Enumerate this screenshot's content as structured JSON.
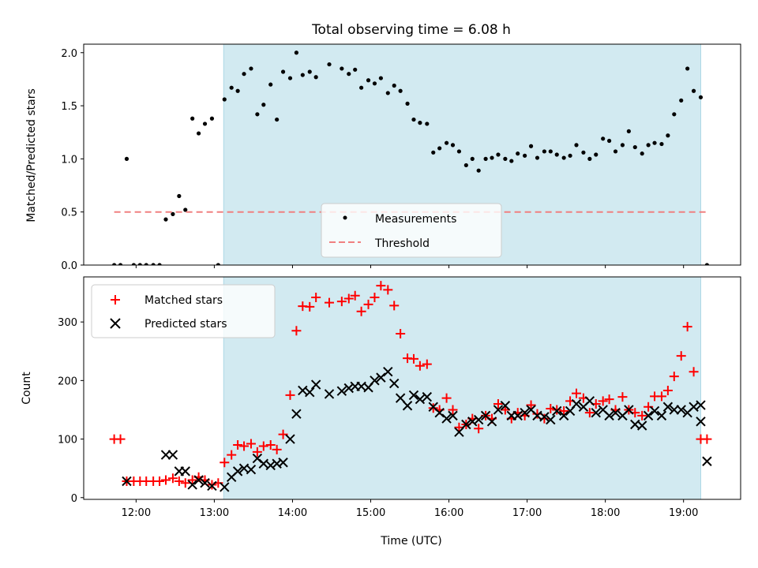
{
  "chart_data": [
    {
      "type": "scatter",
      "title": "Total observing time = 6.08 h",
      "xlabel": "",
      "ylabel": "Matched/Predicted stars",
      "ylim": [
        0,
        2.08
      ],
      "yticks": [
        0.0,
        0.5,
        1.0,
        1.5,
        2.0
      ],
      "ytick_labels": [
        "0.0",
        "0.5",
        "1.0",
        "1.5",
        "2.0"
      ],
      "xlim": [
        11.33,
        19.73
      ],
      "shaded_span": [
        13.12,
        19.22
      ],
      "shaded_color": "#add8e6",
      "legend_position": "lower-center",
      "series": [
        {
          "name": "Measurements",
          "kind": "dots",
          "color": "#000000",
          "x": [
            11.72,
            11.8,
            11.88,
            11.97,
            12.05,
            12.13,
            12.22,
            12.3,
            12.38,
            12.47,
            12.55,
            12.63,
            12.72,
            12.8,
            12.88,
            12.97,
            13.05,
            13.13,
            13.22,
            13.3,
            13.38,
            13.47,
            13.55,
            13.63,
            13.72,
            13.8,
            13.88,
            13.97,
            14.05,
            14.13,
            14.22,
            14.3,
            14.47,
            14.63,
            14.72,
            14.8,
            14.88,
            14.97,
            15.05,
            15.13,
            15.22,
            15.3,
            15.38,
            15.47,
            15.55,
            15.63,
            15.72,
            15.8,
            15.88,
            15.97,
            16.05,
            16.13,
            16.22,
            16.3,
            16.38,
            16.47,
            16.55,
            16.63,
            16.72,
            16.8,
            16.88,
            16.97,
            17.05,
            17.13,
            17.22,
            17.3,
            17.38,
            17.47,
            17.55,
            17.63,
            17.72,
            17.8,
            17.88,
            17.97,
            18.05,
            18.13,
            18.22,
            18.3,
            18.38,
            18.47,
            18.55,
            18.63,
            18.72,
            18.8,
            18.88,
            18.97,
            19.05,
            19.13,
            19.22,
            19.3
          ],
          "y": [
            0.0,
            0.0,
            1.0,
            0.0,
            0.0,
            0.0,
            0.0,
            0.0,
            0.43,
            0.48,
            0.65,
            0.52,
            1.38,
            1.24,
            1.33,
            1.38,
            0.0,
            1.56,
            1.67,
            1.64,
            1.8,
            1.85,
            1.42,
            1.51,
            1.7,
            1.37,
            1.82,
            1.76,
            2.0,
            1.79,
            1.82,
            1.77,
            1.89,
            1.85,
            1.8,
            1.84,
            1.67,
            1.74,
            1.71,
            1.76,
            1.62,
            1.69,
            1.64,
            1.52,
            1.37,
            1.34,
            1.33,
            1.06,
            1.1,
            1.15,
            1.13,
            1.07,
            0.94,
            1.0,
            0.89,
            1.0,
            1.01,
            1.04,
            1.0,
            0.98,
            1.05,
            1.03,
            1.12,
            1.01,
            1.07,
            1.07,
            1.04,
            1.01,
            1.03,
            1.13,
            1.06,
            1.0,
            1.04,
            1.19,
            1.17,
            1.07,
            1.13,
            1.26,
            1.11,
            1.05,
            1.13,
            1.15,
            1.14,
            1.22,
            1.42,
            1.55,
            1.85,
            1.64,
            1.58,
            0.0
          ]
        },
        {
          "name": "Threshold",
          "kind": "dashed-line",
          "color": "#f08080",
          "x": [
            11.72,
            19.3
          ],
          "y": [
            0.5,
            0.5
          ]
        }
      ]
    },
    {
      "type": "scatter",
      "title": "",
      "xlabel": "Time (UTC)",
      "ylabel": "Count",
      "ylim": [
        -3,
        377
      ],
      "yticks": [
        0,
        100,
        200,
        300
      ],
      "ytick_labels": [
        "0",
        "100",
        "200",
        "300"
      ],
      "xlim": [
        11.33,
        19.73
      ],
      "xticks": [
        12,
        13,
        14,
        15,
        16,
        17,
        18,
        19
      ],
      "xtick_labels": [
        "12:00",
        "13:00",
        "14:00",
        "15:00",
        "16:00",
        "17:00",
        "18:00",
        "19:00"
      ],
      "shaded_span": [
        13.12,
        19.22
      ],
      "shaded_color": "#add8e6",
      "legend_position": "upper-left",
      "series": [
        {
          "name": "Matched stars",
          "kind": "plus",
          "color": "#ff0000",
          "x": [
            11.72,
            11.8,
            11.88,
            11.97,
            12.05,
            12.13,
            12.22,
            12.3,
            12.38,
            12.47,
            12.55,
            12.63,
            12.72,
            12.8,
            12.88,
            12.97,
            13.05,
            13.13,
            13.22,
            13.3,
            13.38,
            13.47,
            13.55,
            13.63,
            13.72,
            13.8,
            13.88,
            13.97,
            14.05,
            14.13,
            14.22,
            14.3,
            14.47,
            14.63,
            14.72,
            14.8,
            14.88,
            14.97,
            15.05,
            15.13,
            15.22,
            15.3,
            15.38,
            15.47,
            15.55,
            15.63,
            15.72,
            15.8,
            15.88,
            15.97,
            16.05,
            16.13,
            16.22,
            16.3,
            16.38,
            16.47,
            16.55,
            16.63,
            16.72,
            16.8,
            16.88,
            16.97,
            17.05,
            17.13,
            17.22,
            17.3,
            17.38,
            17.47,
            17.55,
            17.63,
            17.72,
            17.8,
            17.88,
            17.97,
            18.05,
            18.13,
            18.22,
            18.3,
            18.38,
            18.47,
            18.55,
            18.63,
            18.72,
            18.8,
            18.88,
            18.97,
            19.05,
            19.13,
            19.22,
            19.3
          ],
          "y": [
            100,
            100,
            28,
            28,
            28,
            28,
            28,
            28,
            30,
            33,
            28,
            25,
            30,
            35,
            30,
            22,
            25,
            60,
            73,
            90,
            88,
            92,
            78,
            88,
            90,
            82,
            108,
            175,
            285,
            327,
            326,
            342,
            333,
            335,
            340,
            345,
            318,
            330,
            342,
            362,
            355,
            328,
            280,
            238,
            237,
            225,
            228,
            153,
            150,
            170,
            150,
            120,
            125,
            135,
            118,
            140,
            135,
            160,
            150,
            135,
            145,
            140,
            158,
            143,
            135,
            152,
            150,
            148,
            165,
            178,
            170,
            145,
            160,
            165,
            168,
            150,
            172,
            150,
            145,
            140,
            155,
            173,
            173,
            183,
            207,
            242,
            292,
            215,
            100,
            100
          ]
        },
        {
          "name": "Predicted stars",
          "kind": "cross",
          "color": "#000000",
          "x": [
            11.88,
            12.38,
            12.47,
            12.55,
            12.63,
            12.72,
            12.8,
            12.88,
            12.97,
            13.13,
            13.22,
            13.3,
            13.38,
            13.47,
            13.55,
            13.63,
            13.72,
            13.8,
            13.88,
            13.97,
            14.05,
            14.13,
            14.22,
            14.3,
            14.47,
            14.63,
            14.72,
            14.8,
            14.88,
            14.97,
            15.05,
            15.13,
            15.22,
            15.3,
            15.38,
            15.47,
            15.55,
            15.63,
            15.72,
            15.8,
            15.88,
            15.97,
            16.05,
            16.13,
            16.22,
            16.3,
            16.38,
            16.47,
            16.55,
            16.63,
            16.72,
            16.8,
            16.88,
            16.97,
            17.05,
            17.13,
            17.22,
            17.3,
            17.38,
            17.47,
            17.55,
            17.63,
            17.72,
            17.8,
            17.88,
            17.97,
            18.05,
            18.13,
            18.22,
            18.3,
            18.38,
            18.47,
            18.55,
            18.63,
            18.72,
            18.8,
            18.88,
            18.97,
            19.05,
            19.13,
            19.22
          ],
          "y": [
            28,
            73,
            73,
            45,
            45,
            22,
            30,
            25,
            20,
            18,
            35,
            45,
            50,
            48,
            67,
            58,
            55,
            58,
            60,
            100,
            143,
            183,
            180,
            193,
            177,
            182,
            187,
            190,
            190,
            188,
            200,
            205,
            215,
            195,
            170,
            157,
            175,
            168,
            172,
            155,
            145,
            135,
            140,
            112,
            125,
            130,
            133,
            140,
            130,
            150,
            157,
            140,
            140,
            145,
            150,
            140,
            138,
            133,
            148,
            140,
            148,
            160,
            155,
            165,
            145,
            150,
            140,
            145,
            140,
            150,
            125,
            123,
            140,
            148,
            140,
            155,
            150,
            150,
            145,
            155,
            158
          ],
          "extra": {
            "x": [
              19.22,
              19.3
            ],
            "y": [
              130,
              62
            ]
          }
        }
      ]
    }
  ]
}
